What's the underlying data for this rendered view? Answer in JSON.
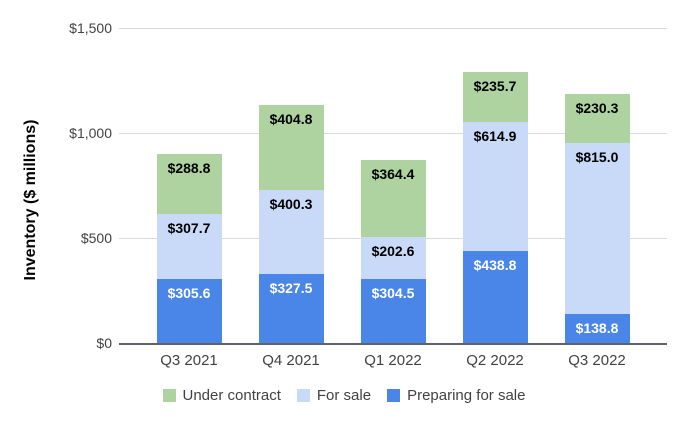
{
  "chart_data": {
    "type": "bar",
    "stacked": true,
    "title": "",
    "ylabel": "Inventory ($ millions)",
    "xlabel": "",
    "categories": [
      "Q3 2021",
      "Q4 2021",
      "Q1 2022",
      "Q2 2022",
      "Q3 2022"
    ],
    "series": [
      {
        "name": "Preparing for sale",
        "color": "#4a86e8",
        "label_color": "#ffffff",
        "values": [
          305.6,
          327.5,
          304.5,
          438.8,
          138.8
        ]
      },
      {
        "name": "For sale",
        "color": "#c9daf8",
        "label_color": "#000000",
        "values": [
          307.7,
          400.3,
          202.6,
          614.9,
          815.0
        ]
      },
      {
        "name": "Under contract",
        "color": "#aed3a0",
        "label_color": "#000000",
        "values": [
          288.8,
          404.8,
          364.4,
          235.7,
          230.3
        ]
      }
    ],
    "ylim": [
      0,
      1500
    ],
    "yticks": [
      {
        "value": 0,
        "label": "$0"
      },
      {
        "value": 500,
        "label": "$500"
      },
      {
        "value": 1000,
        "label": "$1,000"
      },
      {
        "value": 1500,
        "label": "$1,500"
      }
    ],
    "grid": true,
    "legend_position": "bottom",
    "legend": [
      "Under contract",
      "For sale",
      "Preparing for sale"
    ],
    "value_prefix": "$",
    "value_decimals": 1,
    "colors": {
      "background": "#ffffff",
      "grid": "#dadada",
      "axis_line": "#5f6368",
      "axis_text": "#424242"
    }
  }
}
